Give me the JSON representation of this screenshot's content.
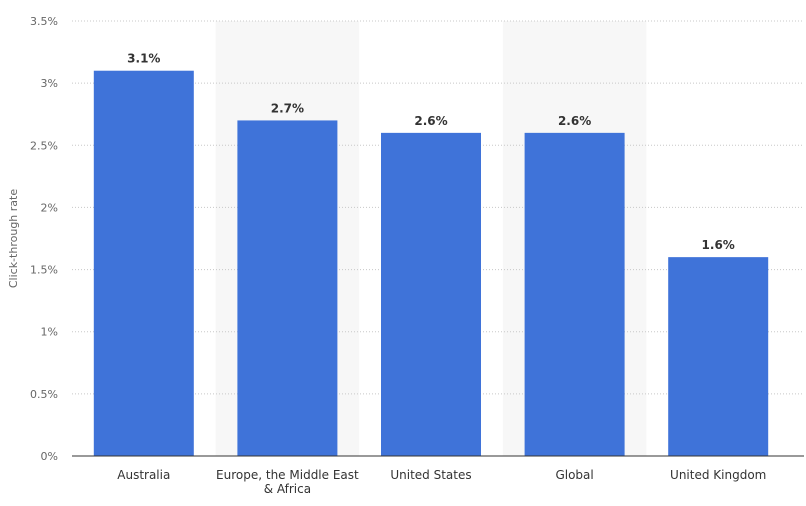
{
  "chart_data": {
    "type": "bar",
    "categories": [
      "Australia",
      "Europe, the Middle East & Africa",
      "United States",
      "Global",
      "United Kingdom"
    ],
    "category_label_lines": [
      [
        "Australia"
      ],
      [
        "Europe, the Middle East",
        "& Africa"
      ],
      [
        "United States"
      ],
      [
        "Global"
      ],
      [
        "United Kingdom"
      ]
    ],
    "values": [
      3.1,
      2.7,
      2.6,
      2.6,
      1.6
    ],
    "data_labels": [
      "3.1%",
      "2.7%",
      "2.6%",
      "2.6%",
      "1.6%"
    ],
    "xlabel": "",
    "ylabel": "Click-through rate",
    "ylim": [
      0,
      3.5
    ],
    "yticks": [
      0,
      0.5,
      1,
      1.5,
      2,
      2.5,
      3,
      3.5
    ],
    "ytick_labels": [
      "0%",
      "0.5%",
      "1%",
      "1.5%",
      "2%",
      "2.5%",
      "3%",
      "3.5%"
    ],
    "grid": true,
    "colors": {
      "bar": "#3f73d9",
      "alt_band": "#f7f7f7",
      "grid": "#c8c8c8",
      "axis": "#333333"
    }
  }
}
